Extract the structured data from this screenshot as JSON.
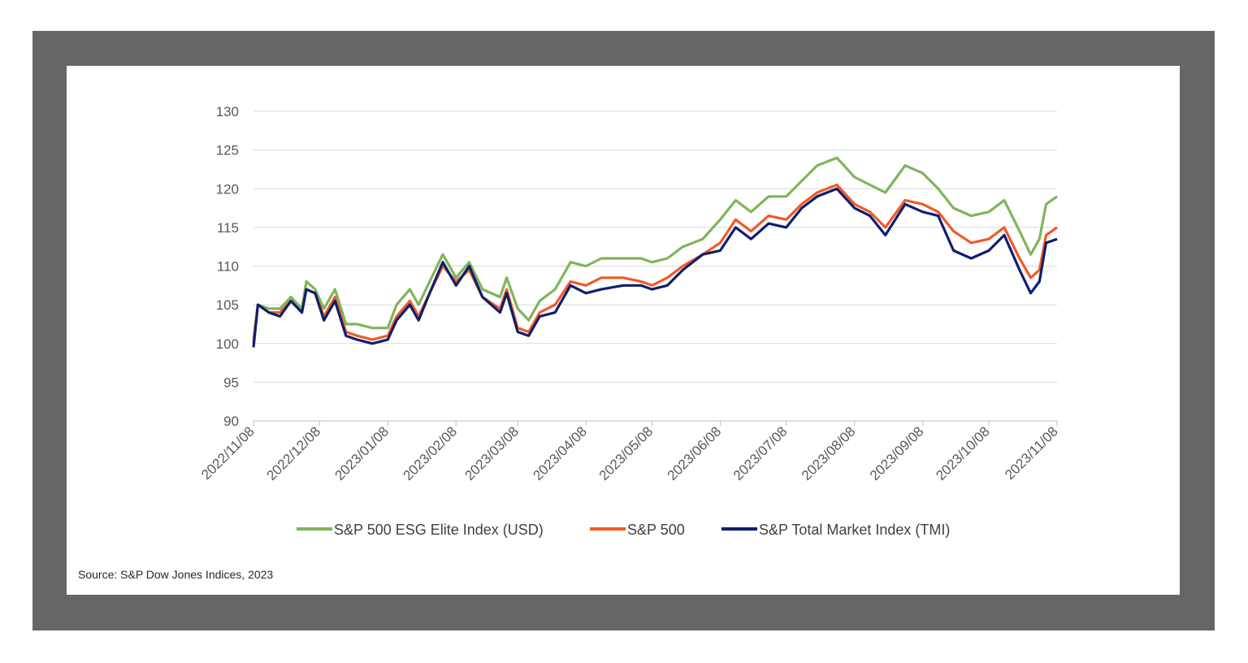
{
  "source": "Source: S&P Dow Jones Indices, 2023",
  "chart_data": {
    "type": "line",
    "title": "",
    "xlabel": "",
    "ylabel": "",
    "ylim": [
      90,
      130
    ],
    "yticks": [
      90,
      95,
      100,
      105,
      110,
      115,
      120,
      125,
      130
    ],
    "xticks": [
      "2022/11/08",
      "2022/12/08",
      "2023/01/08",
      "2023/02/08",
      "2023/03/08",
      "2023/04/08",
      "2023/05/08",
      "2023/06/08",
      "2023/07/08",
      "2023/08/08",
      "2023/09/08",
      "2023/10/08",
      "2023/11/08"
    ],
    "grid": true,
    "legend_position": "bottom",
    "series": [
      {
        "name": "S&P 500 ESG Elite Index (USD)",
        "color": "#7fb55a",
        "points": [
          [
            "2022/11/08",
            100.5
          ],
          [
            "2022/11/10",
            105.0
          ],
          [
            "2022/11/15",
            104.5
          ],
          [
            "2022/11/20",
            104.5
          ],
          [
            "2022/11/25",
            106.0
          ],
          [
            "2022/11/30",
            104.5
          ],
          [
            "2022/12/02",
            108.0
          ],
          [
            "2022/12/06",
            107.0
          ],
          [
            "2022/12/10",
            104.5
          ],
          [
            "2022/12/15",
            107.0
          ],
          [
            "2022/12/20",
            102.5
          ],
          [
            "2022/12/25",
            102.5
          ],
          [
            "2023/01/01",
            102.0
          ],
          [
            "2023/01/08",
            102.0
          ],
          [
            "2023/01/12",
            105.0
          ],
          [
            "2023/01/18",
            107.0
          ],
          [
            "2023/01/22",
            105.0
          ],
          [
            "2023/01/27",
            108.0
          ],
          [
            "2023/02/02",
            111.5
          ],
          [
            "2023/02/08",
            108.5
          ],
          [
            "2023/02/14",
            110.5
          ],
          [
            "2023/02/20",
            107.0
          ],
          [
            "2023/02/28",
            106.0
          ],
          [
            "2023/03/03",
            108.5
          ],
          [
            "2023/03/08",
            104.5
          ],
          [
            "2023/03/13",
            103.0
          ],
          [
            "2023/03/18",
            105.5
          ],
          [
            "2023/03/25",
            107.0
          ],
          [
            "2023/04/01",
            110.5
          ],
          [
            "2023/04/08",
            110.0
          ],
          [
            "2023/04/15",
            111.0
          ],
          [
            "2023/04/25",
            111.0
          ],
          [
            "2023/05/03",
            111.0
          ],
          [
            "2023/05/08",
            110.5
          ],
          [
            "2023/05/15",
            111.0
          ],
          [
            "2023/05/22",
            112.5
          ],
          [
            "2023/05/31",
            113.5
          ],
          [
            "2023/06/08",
            116.0
          ],
          [
            "2023/06/15",
            118.5
          ],
          [
            "2023/06/22",
            117.0
          ],
          [
            "2023/06/30",
            119.0
          ],
          [
            "2023/07/08",
            119.0
          ],
          [
            "2023/07/15",
            121.0
          ],
          [
            "2023/07/22",
            123.0
          ],
          [
            "2023/07/31",
            124.0
          ],
          [
            "2023/08/08",
            121.5
          ],
          [
            "2023/08/15",
            120.5
          ],
          [
            "2023/08/22",
            119.5
          ],
          [
            "2023/08/31",
            123.0
          ],
          [
            "2023/09/08",
            122.0
          ],
          [
            "2023/09/15",
            120.0
          ],
          [
            "2023/09/22",
            117.5
          ],
          [
            "2023/09/30",
            116.5
          ],
          [
            "2023/10/08",
            117.0
          ],
          [
            "2023/10/15",
            118.5
          ],
          [
            "2023/10/22",
            114.5
          ],
          [
            "2023/10/27",
            111.5
          ],
          [
            "2023/10/31",
            113.5
          ],
          [
            "2023/11/03",
            118.0
          ],
          [
            "2023/11/08",
            119.0
          ]
        ]
      },
      {
        "name": "S&P 500",
        "color": "#f05a28",
        "points": [
          [
            "2022/11/08",
            100.0
          ],
          [
            "2022/11/10",
            105.0
          ],
          [
            "2022/11/15",
            104.0
          ],
          [
            "2022/11/20",
            104.0
          ],
          [
            "2022/11/25",
            105.5
          ],
          [
            "2022/11/30",
            104.0
          ],
          [
            "2022/12/02",
            107.0
          ],
          [
            "2022/12/06",
            106.5
          ],
          [
            "2022/12/10",
            103.5
          ],
          [
            "2022/12/15",
            106.0
          ],
          [
            "2022/12/20",
            101.5
          ],
          [
            "2022/12/25",
            101.0
          ],
          [
            "2023/01/01",
            100.5
          ],
          [
            "2023/01/08",
            101.0
          ],
          [
            "2023/01/12",
            103.5
          ],
          [
            "2023/01/18",
            105.5
          ],
          [
            "2023/01/22",
            103.5
          ],
          [
            "2023/01/27",
            106.5
          ],
          [
            "2023/02/02",
            110.0
          ],
          [
            "2023/02/08",
            108.0
          ],
          [
            "2023/02/14",
            109.5
          ],
          [
            "2023/02/20",
            106.0
          ],
          [
            "2023/02/28",
            104.5
          ],
          [
            "2023/03/03",
            107.0
          ],
          [
            "2023/03/08",
            102.0
          ],
          [
            "2023/03/13",
            101.5
          ],
          [
            "2023/03/18",
            104.0
          ],
          [
            "2023/03/25",
            105.0
          ],
          [
            "2023/04/01",
            108.0
          ],
          [
            "2023/04/08",
            107.5
          ],
          [
            "2023/04/15",
            108.5
          ],
          [
            "2023/04/25",
            108.5
          ],
          [
            "2023/05/03",
            108.0
          ],
          [
            "2023/05/08",
            107.5
          ],
          [
            "2023/05/15",
            108.5
          ],
          [
            "2023/05/22",
            110.0
          ],
          [
            "2023/05/31",
            111.5
          ],
          [
            "2023/06/08",
            113.0
          ],
          [
            "2023/06/15",
            116.0
          ],
          [
            "2023/06/22",
            114.5
          ],
          [
            "2023/06/30",
            116.5
          ],
          [
            "2023/07/08",
            116.0
          ],
          [
            "2023/07/15",
            118.0
          ],
          [
            "2023/07/22",
            119.5
          ],
          [
            "2023/07/31",
            120.5
          ],
          [
            "2023/08/08",
            118.0
          ],
          [
            "2023/08/15",
            117.0
          ],
          [
            "2023/08/22",
            115.0
          ],
          [
            "2023/08/31",
            118.5
          ],
          [
            "2023/09/08",
            118.0
          ],
          [
            "2023/09/15",
            117.0
          ],
          [
            "2023/09/22",
            114.5
          ],
          [
            "2023/09/30",
            113.0
          ],
          [
            "2023/10/08",
            113.5
          ],
          [
            "2023/10/15",
            115.0
          ],
          [
            "2023/10/22",
            111.0
          ],
          [
            "2023/10/27",
            108.5
          ],
          [
            "2023/10/31",
            109.5
          ],
          [
            "2023/11/03",
            114.0
          ],
          [
            "2023/11/08",
            115.0
          ]
        ]
      },
      {
        "name": "S&P Total Market Index (TMI)",
        "color": "#0f1e6e",
        "points": [
          [
            "2022/11/08",
            99.5
          ],
          [
            "2022/11/10",
            105.0
          ],
          [
            "2022/11/15",
            104.0
          ],
          [
            "2022/11/20",
            103.5
          ],
          [
            "2022/11/25",
            105.5
          ],
          [
            "2022/11/30",
            104.0
          ],
          [
            "2022/12/02",
            107.0
          ],
          [
            "2022/12/06",
            106.5
          ],
          [
            "2022/12/10",
            103.0
          ],
          [
            "2022/12/15",
            105.5
          ],
          [
            "2022/12/20",
            101.0
          ],
          [
            "2022/12/25",
            100.5
          ],
          [
            "2023/01/01",
            100.0
          ],
          [
            "2023/01/08",
            100.5
          ],
          [
            "2023/01/12",
            103.0
          ],
          [
            "2023/01/18",
            105.0
          ],
          [
            "2023/01/22",
            103.0
          ],
          [
            "2023/01/27",
            106.5
          ],
          [
            "2023/02/02",
            110.5
          ],
          [
            "2023/02/08",
            107.5
          ],
          [
            "2023/02/14",
            110.0
          ],
          [
            "2023/02/20",
            106.0
          ],
          [
            "2023/02/28",
            104.0
          ],
          [
            "2023/03/03",
            106.5
          ],
          [
            "2023/03/08",
            101.5
          ],
          [
            "2023/03/13",
            101.0
          ],
          [
            "2023/03/18",
            103.5
          ],
          [
            "2023/03/25",
            104.0
          ],
          [
            "2023/04/01",
            107.5
          ],
          [
            "2023/04/08",
            106.5
          ],
          [
            "2023/04/15",
            107.0
          ],
          [
            "2023/04/25",
            107.5
          ],
          [
            "2023/05/03",
            107.5
          ],
          [
            "2023/05/08",
            107.0
          ],
          [
            "2023/05/15",
            107.5
          ],
          [
            "2023/05/22",
            109.5
          ],
          [
            "2023/05/31",
            111.5
          ],
          [
            "2023/06/08",
            112.0
          ],
          [
            "2023/06/15",
            115.0
          ],
          [
            "2023/06/22",
            113.5
          ],
          [
            "2023/06/30",
            115.5
          ],
          [
            "2023/07/08",
            115.0
          ],
          [
            "2023/07/15",
            117.5
          ],
          [
            "2023/07/22",
            119.0
          ],
          [
            "2023/07/31",
            120.0
          ],
          [
            "2023/08/08",
            117.5
          ],
          [
            "2023/08/15",
            116.5
          ],
          [
            "2023/08/22",
            114.0
          ],
          [
            "2023/08/31",
            118.0
          ],
          [
            "2023/09/08",
            117.0
          ],
          [
            "2023/09/15",
            116.5
          ],
          [
            "2023/09/22",
            112.0
          ],
          [
            "2023/09/30",
            111.0
          ],
          [
            "2023/10/08",
            112.0
          ],
          [
            "2023/10/15",
            114.0
          ],
          [
            "2023/10/22",
            109.5
          ],
          [
            "2023/10/27",
            106.5
          ],
          [
            "2023/10/31",
            108.0
          ],
          [
            "2023/11/03",
            113.0
          ],
          [
            "2023/11/08",
            113.5
          ]
        ]
      }
    ]
  }
}
